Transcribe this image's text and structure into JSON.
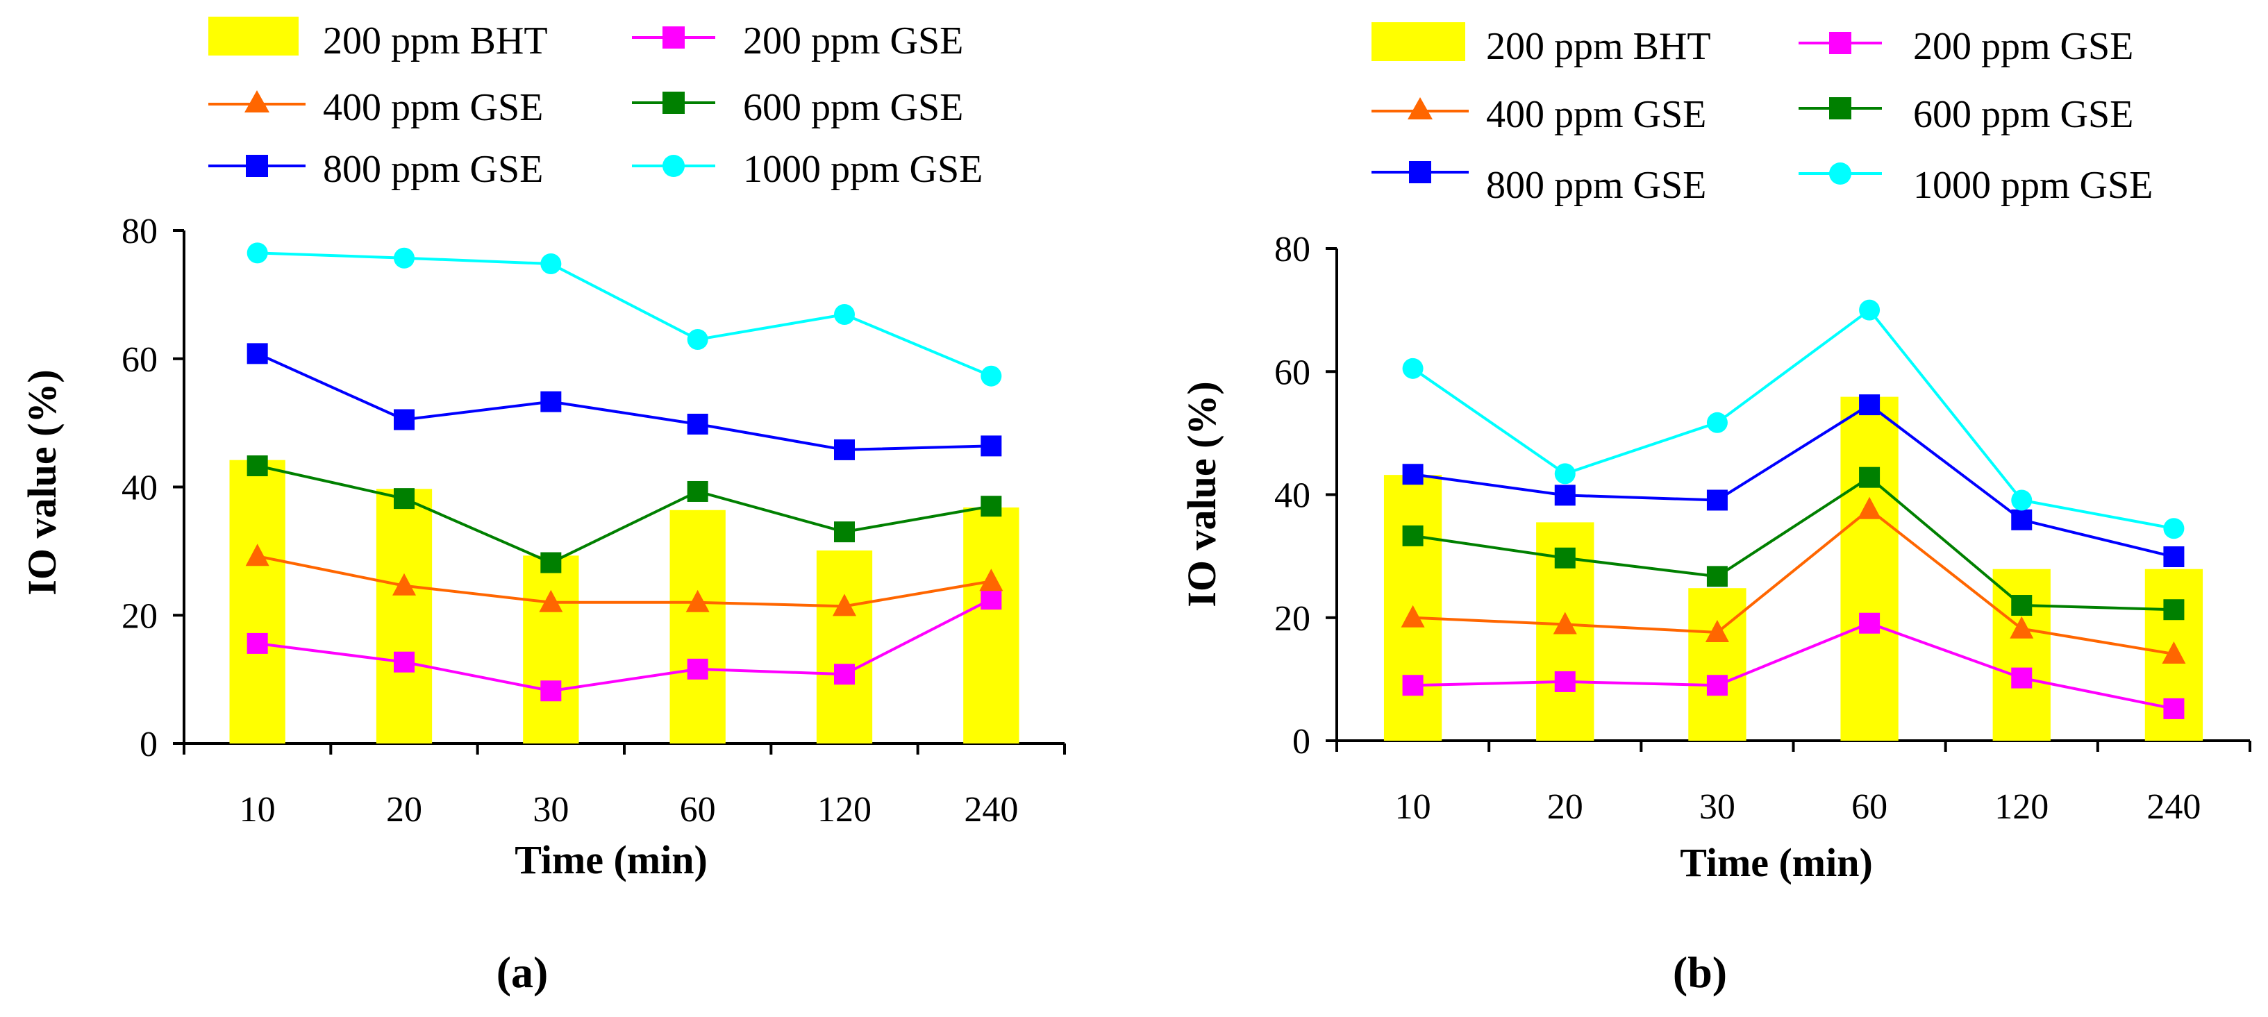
{
  "chart_data": [
    {
      "type": "bar+line",
      "panel_label": "(a)",
      "categories": [
        "10",
        "20",
        "30",
        "60",
        "120",
        "240"
      ],
      "xlabel": "Time (min)",
      "ylabel": "IO value (%)",
      "ylim": [
        0,
        80
      ],
      "yticks": [
        "0",
        "20",
        "40",
        "60",
        "80"
      ],
      "legend": [
        "200 ppm BHT",
        "200 ppm GSE",
        "400 ppm GSE",
        "600 ppm GSE",
        "800 ppm GSE",
        "1000 ppm GSE"
      ],
      "series": [
        {
          "name": "200 ppm BHT",
          "kind": "bar",
          "marker": "none",
          "color": "#ffff00",
          "values": [
            44.2,
            39.7,
            29.3,
            36.4,
            30.1,
            36.8
          ]
        },
        {
          "name": "200 ppm GSE",
          "kind": "line",
          "marker": "square",
          "color": "#ff00ff",
          "values": [
            15.6,
            12.7,
            8.2,
            11.6,
            10.8,
            22.5
          ]
        },
        {
          "name": "400 ppm GSE",
          "kind": "line",
          "marker": "triangle",
          "color": "#ff6600",
          "values": [
            29.2,
            24.6,
            22.0,
            22.0,
            21.4,
            25.3
          ]
        },
        {
          "name": "600 ppm GSE",
          "kind": "line",
          "marker": "square",
          "color": "#008000",
          "values": [
            43.3,
            38.2,
            28.2,
            39.3,
            33.0,
            37.0
          ]
        },
        {
          "name": "800 ppm GSE",
          "kind": "line",
          "marker": "square",
          "color": "#0000ff",
          "values": [
            60.8,
            50.5,
            53.3,
            49.8,
            45.8,
            46.4
          ]
        },
        {
          "name": "1000 ppm GSE",
          "kind": "line",
          "marker": "circle",
          "color": "#00ffff",
          "values": [
            76.5,
            75.7,
            74.8,
            63.0,
            66.9,
            57.3
          ]
        }
      ]
    },
    {
      "type": "bar+line",
      "panel_label": "(b)",
      "categories": [
        "10",
        "20",
        "30",
        "60",
        "120",
        "240"
      ],
      "xlabel": "Time (min)",
      "ylabel": "IO value (%)",
      "ylim": [
        0,
        80
      ],
      "yticks": [
        "0",
        "20",
        "40",
        "60",
        "80"
      ],
      "legend": [
        "200 ppm BHT",
        "200 ppm GSE",
        "400 ppm GSE",
        "600 ppm GSE",
        "800 ppm GSE",
        "1000 ppm GSE"
      ],
      "series": [
        {
          "name": "200 ppm BHT",
          "kind": "bar",
          "marker": "none",
          "color": "#ffff00",
          "values": [
            43.2,
            35.5,
            24.8,
            55.9,
            27.9,
            27.9
          ]
        },
        {
          "name": "200 ppm GSE",
          "kind": "line",
          "marker": "square",
          "color": "#ff00ff",
          "values": [
            9.0,
            9.6,
            9.0,
            19.1,
            10.2,
            5.2
          ]
        },
        {
          "name": "400 ppm GSE",
          "kind": "line",
          "marker": "triangle",
          "color": "#ff6600",
          "values": [
            20.0,
            18.9,
            17.6,
            37.6,
            18.2,
            14.1
          ]
        },
        {
          "name": "600 ppm GSE",
          "kind": "line",
          "marker": "square",
          "color": "#008000",
          "values": [
            33.3,
            29.7,
            26.7,
            42.8,
            22.0,
            21.3
          ]
        },
        {
          "name": "800 ppm GSE",
          "kind": "line",
          "marker": "square",
          "color": "#0000ff",
          "values": [
            43.3,
            39.9,
            39.1,
            54.6,
            35.9,
            29.9
          ]
        },
        {
          "name": "1000 ppm GSE",
          "kind": "line",
          "marker": "circle",
          "color": "#00ffff",
          "values": [
            60.5,
            43.4,
            51.7,
            70.0,
            39.1,
            34.5
          ]
        }
      ]
    }
  ]
}
